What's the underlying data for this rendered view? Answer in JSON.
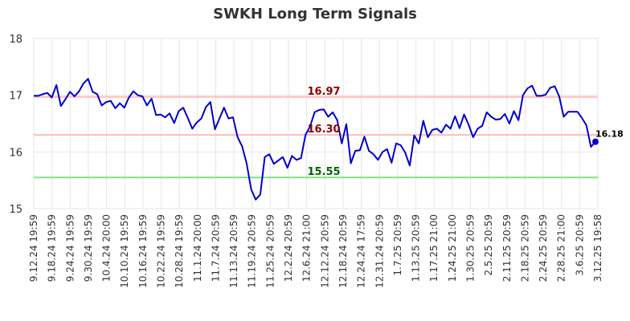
{
  "chart_data": {
    "type": "line",
    "title": "SWKH Long Term Signals",
    "xlabel": "",
    "ylabel": "",
    "ylim": [
      15,
      18
    ],
    "yticks": [
      "15",
      "16",
      "17",
      "18"
    ],
    "grid": true,
    "xtick_labels": [
      "9.12.24 19:59",
      "9.18.24 19:59",
      "9.24.24 19:59",
      "9.30.24 19:59",
      "10.4.24 20:00",
      "10.10.24 19:59",
      "10.16.24 19:59",
      "10.22.24 19:59",
      "10.28.24 19:59",
      "11.1.24 20:00",
      "11.7.24 20:59",
      "11.13.24 20:59",
      "11.19.24 20:59",
      "11.25.24 20:59",
      "12.2.24 20:59",
      "12.6.24 21:00",
      "12.12.24 20:59",
      "12.18.24 20:59",
      "12.24.24 17:59",
      "12.31.24 20:59",
      "1.7.25 20:59",
      "1.13.25 20:59",
      "1.17.25 21:00",
      "1.24.25 21:00",
      "1.30.25 20:59",
      "2.5.25 20:59",
      "2.11.25 20:59",
      "2.18.25 20:59",
      "2.24.25 20:59",
      "2.28.25 21:00",
      "3.6.25 20:59",
      "3.12.25 19:58"
    ],
    "series": [
      {
        "name": "",
        "color": "#0000cc",
        "values": [
          16.99,
          16.99,
          17.02,
          17.04,
          16.96,
          17.18,
          16.81,
          16.93,
          17.06,
          16.98,
          17.07,
          17.21,
          17.29,
          17.06,
          17.02,
          16.82,
          16.88,
          16.9,
          16.77,
          16.86,
          16.78,
          16.96,
          17.07,
          17.0,
          16.98,
          16.82,
          16.94,
          16.65,
          16.66,
          16.61,
          16.68,
          16.51,
          16.72,
          16.78,
          16.6,
          16.41,
          16.52,
          16.59,
          16.79,
          16.88,
          16.4,
          16.59,
          16.78,
          16.59,
          16.61,
          16.26,
          16.1,
          15.8,
          15.34,
          15.16,
          15.25,
          15.91,
          15.96,
          15.79,
          15.85,
          15.91,
          15.72,
          15.93,
          15.86,
          15.89,
          16.3,
          16.45,
          16.7,
          16.74,
          16.75,
          16.62,
          16.7,
          16.56,
          16.15,
          16.49,
          15.8,
          16.02,
          16.03,
          16.27,
          16.02,
          15.96,
          15.86,
          16.0,
          16.05,
          15.81,
          16.15,
          16.12,
          15.99,
          15.76,
          16.29,
          16.15,
          16.55,
          16.26,
          16.39,
          16.41,
          16.34,
          16.48,
          16.41,
          16.63,
          16.42,
          16.66,
          16.48,
          16.26,
          16.41,
          16.46,
          16.7,
          16.62,
          16.57,
          16.58,
          16.67,
          16.5,
          16.72,
          16.56,
          17.0,
          17.12,
          17.17,
          16.99,
          16.99,
          17.01,
          17.13,
          17.16,
          16.98,
          16.62,
          16.71,
          16.71,
          16.71,
          16.6,
          16.47,
          16.09,
          16.18
        ]
      }
    ],
    "levels": [
      {
        "value": 16.97,
        "label": "16.97",
        "line_color": "#ffbbbb",
        "text_color": "#8b0000"
      },
      {
        "value": 16.3,
        "label": "16.30",
        "line_color": "#ffbbbb",
        "text_color": "#8b0000"
      },
      {
        "value": 15.55,
        "label": "15.55",
        "line_color": "#88dd88",
        "text_color": "#006400"
      }
    ],
    "last_value": {
      "value": 16.18,
      "label": "16.18",
      "dot_color": "#0000cc"
    }
  }
}
